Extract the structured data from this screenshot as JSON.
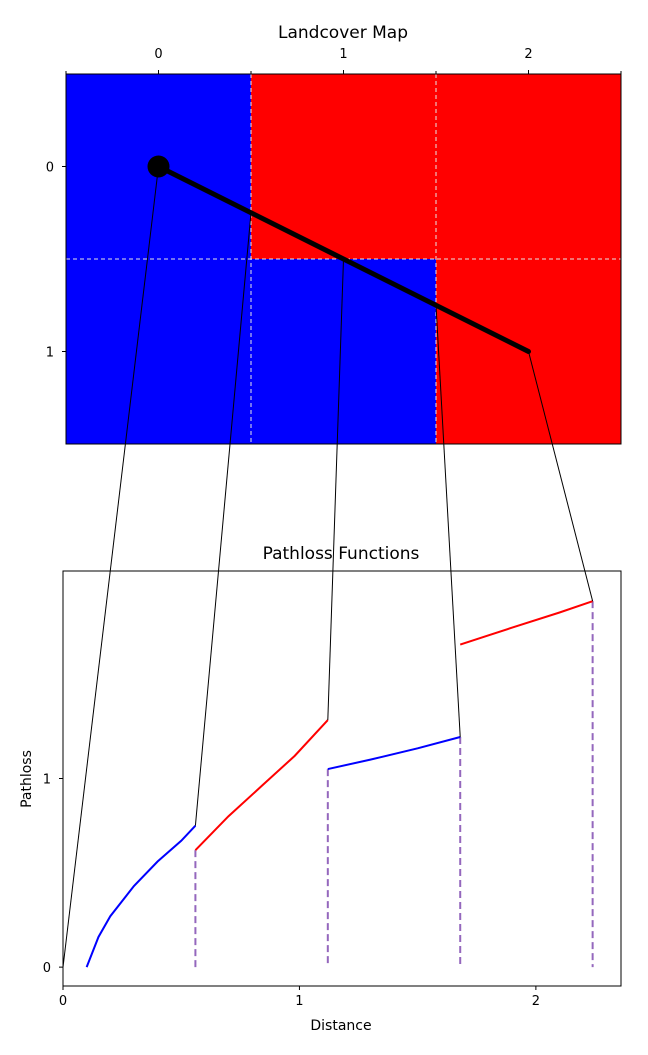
{
  "chart_data": [
    {
      "type": "heatmap",
      "title": "Landcover Map",
      "xlabel": "",
      "ylabel": "",
      "x_ticks": [
        "0",
        "1",
        "2"
      ],
      "y_ticks": [
        "0",
        "1"
      ],
      "xlim": [
        -0.5,
        2.5
      ],
      "ylim": [
        1.5,
        -0.5
      ],
      "cells": [
        [
          "blue",
          "red",
          "red"
        ],
        [
          "blue",
          "blue",
          "red"
        ]
      ],
      "colors": {
        "blue": "#0000ff",
        "red": "#ff0000"
      },
      "grid": true,
      "path": {
        "start": [
          0,
          0
        ],
        "end": [
          2,
          1
        ]
      },
      "boundary_crossings_x": [
        0.5,
        1.0,
        1.5
      ]
    },
    {
      "type": "line",
      "title": "Pathloss Functions",
      "xlabel": "Distance",
      "ylabel": "Pathloss",
      "xlim": [
        0,
        2.36
      ],
      "ylim": [
        -0.1,
        2.1
      ],
      "x_ticks": [
        "0",
        "1",
        "2"
      ],
      "y_ticks": [
        "0",
        "1"
      ],
      "segment_boundaries": [
        0,
        0.56,
        1.12,
        1.68,
        2.24
      ],
      "series": [
        {
          "color": "#0000ff",
          "points": [
            [
              0.1,
              0.0
            ],
            [
              0.15,
              0.16
            ],
            [
              0.2,
              0.27
            ],
            [
              0.3,
              0.43
            ],
            [
              0.4,
              0.56
            ],
            [
              0.5,
              0.67
            ],
            [
              0.56,
              0.75
            ]
          ]
        },
        {
          "color": "#ff0000",
          "points": [
            [
              0.56,
              0.62
            ],
            [
              0.7,
              0.8
            ],
            [
              0.84,
              0.96
            ],
            [
              0.98,
              1.12
            ],
            [
              1.12,
              1.31
            ]
          ]
        },
        {
          "color": "#0000ff",
          "points": [
            [
              1.12,
              1.05
            ],
            [
              1.3,
              1.1
            ],
            [
              1.5,
              1.16
            ],
            [
              1.68,
              1.22
            ]
          ]
        },
        {
          "color": "#ff0000",
          "points": [
            [
              1.68,
              1.71
            ],
            [
              1.9,
              1.8
            ],
            [
              2.1,
              1.88
            ],
            [
              2.24,
              1.94
            ]
          ]
        }
      ]
    }
  ]
}
